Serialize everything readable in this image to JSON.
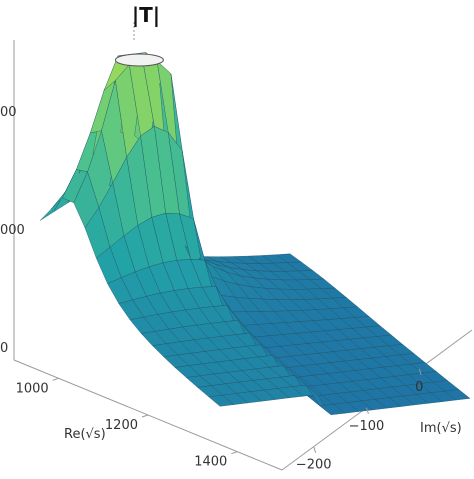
{
  "chart_data": {
    "type": "surface3d",
    "title": "|T|",
    "xlabel": "Re(√s)",
    "ylabel": "Im(√s)",
    "zlabel": "",
    "x_ticks": [
      1000,
      1200,
      1400
    ],
    "y_ticks": [
      -200,
      -100,
      0
    ],
    "z_ticks": [
      0
    ],
    "z_ticks_partial": [
      "00",
      "000"
    ],
    "x_range": [
      900,
      1500
    ],
    "y_range": [
      -260,
      100
    ],
    "z_range": [
      0,
      3000
    ],
    "peak": {
      "re": 1000,
      "im": 0,
      "clipped": true
    },
    "cut_line": {
      "im": -40
    },
    "colormap": [
      "#1f6fa6",
      "#21a3a8",
      "#4fc38c",
      "#9fdc55"
    ]
  }
}
